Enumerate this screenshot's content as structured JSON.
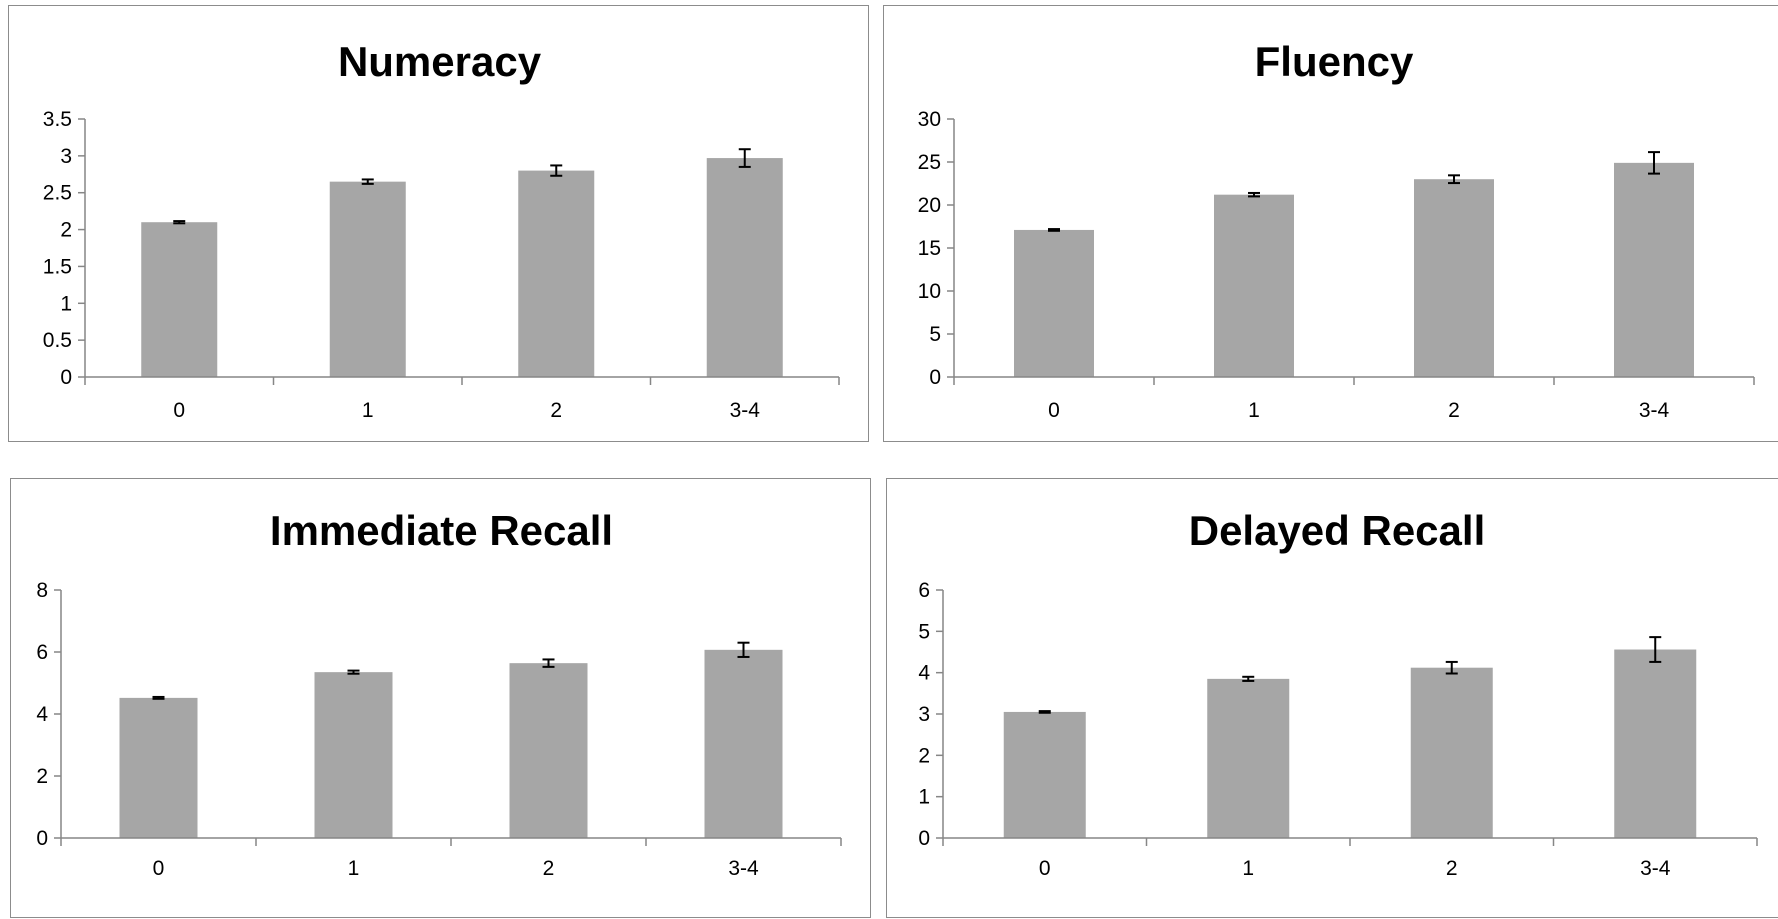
{
  "style": {
    "bar_color": "#a6a6a6",
    "axis_color": "#868686",
    "border_color": "#8c8c8c"
  },
  "chart_data": [
    {
      "type": "bar",
      "title": "Numeracy",
      "categories": [
        "0",
        "1",
        "2",
        "3-4"
      ],
      "values": [
        2.1,
        2.65,
        2.8,
        2.97
      ],
      "errors": [
        0.015,
        0.03,
        0.07,
        0.12
      ],
      "ylim": [
        0,
        3.5
      ],
      "yticks": [
        "0",
        "0.5",
        "1",
        "1.5",
        "2",
        "2.5",
        "3",
        "3.5"
      ],
      "grid": false,
      "legend": "none"
    },
    {
      "type": "bar",
      "title": "Fluency",
      "categories": [
        "0",
        "1",
        "2",
        "3-4"
      ],
      "values": [
        17.1,
        21.2,
        23.0,
        24.9
      ],
      "errors": [
        0.1,
        0.2,
        0.45,
        1.25
      ],
      "ylim": [
        0,
        30
      ],
      "yticks": [
        "0",
        "5",
        "10",
        "15",
        "20",
        "25",
        "30"
      ],
      "grid": false,
      "legend": "none"
    },
    {
      "type": "bar",
      "title": "Immediate Recall",
      "categories": [
        "0",
        "1",
        "2",
        "3-4"
      ],
      "values": [
        4.52,
        5.35,
        5.64,
        6.07
      ],
      "errors": [
        0.03,
        0.05,
        0.12,
        0.23
      ],
      "ylim": [
        0,
        8
      ],
      "yticks": [
        "0",
        "2",
        "4",
        "6",
        "8"
      ],
      "grid": false,
      "legend": "none"
    },
    {
      "type": "bar",
      "title": "Delayed Recall",
      "categories": [
        "0",
        "1",
        "2",
        "3-4"
      ],
      "values": [
        3.05,
        3.85,
        4.12,
        4.56
      ],
      "errors": [
        0.02,
        0.05,
        0.14,
        0.3
      ],
      "ylim": [
        0,
        6
      ],
      "yticks": [
        "0",
        "1",
        "2",
        "3",
        "4",
        "5",
        "6"
      ],
      "grid": false,
      "legend": "none"
    }
  ]
}
